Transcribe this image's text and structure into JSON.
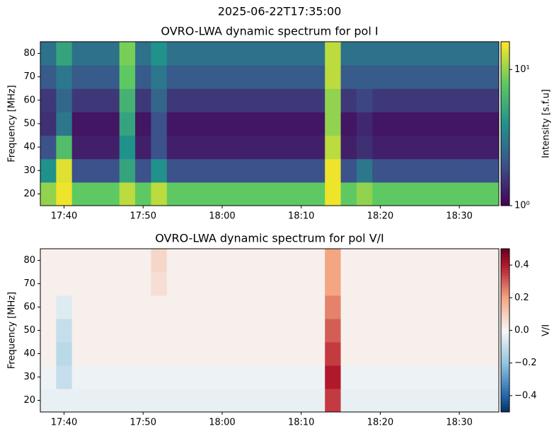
{
  "title": "2025-06-22T17:35:00",
  "chart_data": [
    {
      "type": "heatmap",
      "title": "OVRO-LWA dynamic spectrum for pol I",
      "ylabel": "Frequency [MHz]",
      "x": [
        "17:37",
        "17:39",
        "17:41",
        "17:43",
        "17:45",
        "17:47",
        "17:49",
        "17:51",
        "17:53",
        "17:55",
        "17:57",
        "17:59",
        "18:01",
        "18:03",
        "18:05",
        "18:07",
        "18:09",
        "18:11",
        "18:13",
        "18:15",
        "18:17",
        "18:19",
        "18:21",
        "18:23",
        "18:25",
        "18:27",
        "18:29",
        "18:31",
        "18:33"
      ],
      "xlim": [
        "17:37",
        "18:35"
      ],
      "xticks": [
        "17:40",
        "17:50",
        "18:00",
        "18:10",
        "18:20",
        "18:30"
      ],
      "y": [
        15,
        25,
        35,
        45,
        55,
        65,
        75,
        85
      ],
      "ylim": [
        15,
        85
      ],
      "yticks": [
        20,
        30,
        40,
        50,
        60,
        70,
        80
      ],
      "z": [
        [
          10,
          15,
          8,
          8,
          8,
          12,
          8,
          12,
          8,
          8,
          8,
          8,
          8,
          8,
          8,
          8,
          8,
          8,
          15,
          8,
          10,
          8,
          8,
          8,
          8,
          8,
          8,
          8,
          8
        ],
        [
          4,
          14,
          2,
          2,
          2,
          5,
          2,
          4,
          2,
          2,
          2,
          2,
          2,
          2,
          2,
          2,
          2,
          2,
          15,
          2,
          3,
          2,
          2,
          2,
          2,
          2,
          2,
          2,
          2
        ],
        [
          2,
          7,
          1.3,
          1.3,
          1.3,
          4,
          1.3,
          2,
          1.3,
          1.3,
          1.3,
          1.3,
          1.3,
          1.3,
          1.3,
          1.3,
          1.3,
          1.3,
          12,
          1.3,
          1.5,
          1.3,
          1.3,
          1.3,
          1.3,
          1.3,
          1.3,
          1.3,
          1.3
        ],
        [
          1.5,
          3,
          1.2,
          1.2,
          1.2,
          5,
          1.2,
          2,
          1.2,
          1.2,
          1.2,
          1.2,
          1.2,
          1.2,
          1.2,
          1.2,
          1.2,
          1.2,
          10,
          1.2,
          1.4,
          1.2,
          1.2,
          1.2,
          1.2,
          1.2,
          1.2,
          1.2,
          1.2
        ],
        [
          1.6,
          2.5,
          1.6,
          1.6,
          1.6,
          6,
          1.6,
          2.5,
          1.6,
          1.6,
          1.6,
          1.6,
          1.6,
          1.6,
          1.6,
          1.6,
          1.6,
          1.6,
          10,
          1.6,
          1.8,
          1.6,
          1.6,
          1.6,
          1.6,
          1.6,
          1.6,
          1.6,
          1.6
        ],
        [
          2.2,
          3,
          2.2,
          2.2,
          2.2,
          8,
          2.2,
          3,
          2.2,
          2.2,
          2.2,
          2.2,
          2.2,
          2.2,
          2.2,
          2.2,
          2.2,
          2.2,
          12,
          2.2,
          2.2,
          2.2,
          2.2,
          2.2,
          2.2,
          2.2,
          2.2,
          2.2,
          2.2
        ],
        [
          2.8,
          5,
          2.8,
          2.8,
          2.8,
          9,
          2.8,
          4,
          2.8,
          2.8,
          2.8,
          2.8,
          2.8,
          2.8,
          2.8,
          2.8,
          2.8,
          2.8,
          12,
          2.8,
          2.8,
          2.8,
          2.8,
          2.8,
          2.8,
          2.8,
          2.8,
          2.8,
          2.8
        ]
      ],
      "colormap": "viridis",
      "scale": "log",
      "clim": [
        1,
        16
      ],
      "cticks": [
        {
          "value": 1,
          "label": "10⁰"
        },
        {
          "value": 10,
          "label": "10¹"
        }
      ],
      "colorbar_label": "Intensity [s.f.u]"
    },
    {
      "type": "heatmap",
      "title": "OVRO-LWA dynamic spectrum for pol V/I",
      "ylabel": "Frequency [MHz]",
      "x": [
        "17:37",
        "17:39",
        "17:41",
        "17:43",
        "17:45",
        "17:47",
        "17:49",
        "17:51",
        "17:53",
        "17:55",
        "17:57",
        "17:59",
        "18:01",
        "18:03",
        "18:05",
        "18:07",
        "18:09",
        "18:11",
        "18:13",
        "18:15",
        "18:17",
        "18:19",
        "18:21",
        "18:23",
        "18:25",
        "18:27",
        "18:29",
        "18:31",
        "18:33"
      ],
      "xlim": [
        "17:37",
        "18:35"
      ],
      "xticks": [
        "17:40",
        "17:50",
        "18:00",
        "18:10",
        "18:20",
        "18:30"
      ],
      "y": [
        15,
        25,
        35,
        45,
        55,
        65,
        75,
        85
      ],
      "ylim": [
        15,
        85
      ],
      "yticks": [
        20,
        30,
        40,
        50,
        60,
        70,
        80
      ],
      "z": [
        [
          -0.03,
          -0.03,
          -0.03,
          -0.03,
          -0.03,
          -0.03,
          -0.03,
          -0.03,
          -0.03,
          -0.03,
          -0.03,
          -0.03,
          -0.03,
          -0.03,
          -0.03,
          -0.03,
          -0.03,
          -0.03,
          0.35,
          -0.03,
          -0.03,
          -0.03,
          -0.03,
          -0.03,
          -0.03,
          -0.03,
          -0.03,
          -0.03,
          -0.03
        ],
        [
          -0.02,
          -0.1,
          -0.02,
          -0.02,
          -0.02,
          -0.02,
          -0.02,
          -0.02,
          -0.02,
          -0.02,
          -0.02,
          -0.02,
          -0.02,
          -0.02,
          -0.02,
          -0.02,
          -0.02,
          -0.02,
          0.4,
          -0.02,
          -0.02,
          -0.02,
          -0.02,
          -0.02,
          -0.02,
          -0.02,
          -0.02,
          -0.02,
          -0.02
        ],
        [
          0.02,
          -0.12,
          0.02,
          0.02,
          0.02,
          0.02,
          0.02,
          0.02,
          0.02,
          0.02,
          0.02,
          0.02,
          0.02,
          0.02,
          0.02,
          0.02,
          0.02,
          0.02,
          0.35,
          0.02,
          0.02,
          0.02,
          0.02,
          0.02,
          0.02,
          0.02,
          0.02,
          0.02,
          0.02
        ],
        [
          0.02,
          -0.1,
          0.02,
          0.02,
          0.02,
          0.02,
          0.02,
          0.02,
          0.02,
          0.02,
          0.02,
          0.02,
          0.02,
          0.02,
          0.02,
          0.02,
          0.02,
          0.02,
          0.3,
          0.02,
          0.02,
          0.02,
          0.02,
          0.02,
          0.02,
          0.02,
          0.02,
          0.02,
          0.02
        ],
        [
          0.02,
          -0.05,
          0.02,
          0.02,
          0.02,
          0.02,
          0.02,
          0.02,
          0.02,
          0.02,
          0.02,
          0.02,
          0.02,
          0.02,
          0.02,
          0.02,
          0.02,
          0.02,
          0.25,
          0.02,
          0.02,
          0.02,
          0.02,
          0.02,
          0.02,
          0.02,
          0.02,
          0.02,
          0.02
        ],
        [
          0.02,
          0.02,
          0.02,
          0.02,
          0.02,
          0.02,
          0.02,
          0.06,
          0.02,
          0.02,
          0.02,
          0.02,
          0.02,
          0.02,
          0.02,
          0.02,
          0.02,
          0.02,
          0.2,
          0.02,
          0.02,
          0.02,
          0.02,
          0.02,
          0.02,
          0.02,
          0.02,
          0.02,
          0.02
        ],
        [
          0.02,
          0.02,
          0.02,
          0.02,
          0.02,
          0.02,
          0.02,
          0.08,
          0.02,
          0.02,
          0.02,
          0.02,
          0.02,
          0.02,
          0.02,
          0.02,
          0.02,
          0.02,
          0.2,
          0.02,
          0.02,
          0.02,
          0.02,
          0.02,
          0.02,
          0.02,
          0.02,
          0.02,
          0.02
        ]
      ],
      "colormap": "RdBu_r",
      "scale": "linear",
      "clim": [
        -0.5,
        0.5
      ],
      "cticks": [
        {
          "value": -0.4,
          "label": "−0.4"
        },
        {
          "value": -0.2,
          "label": "−0.2"
        },
        {
          "value": 0,
          "label": "0.0"
        },
        0.2,
        0.4
      ],
      "colorbar_label": "V/I"
    }
  ]
}
